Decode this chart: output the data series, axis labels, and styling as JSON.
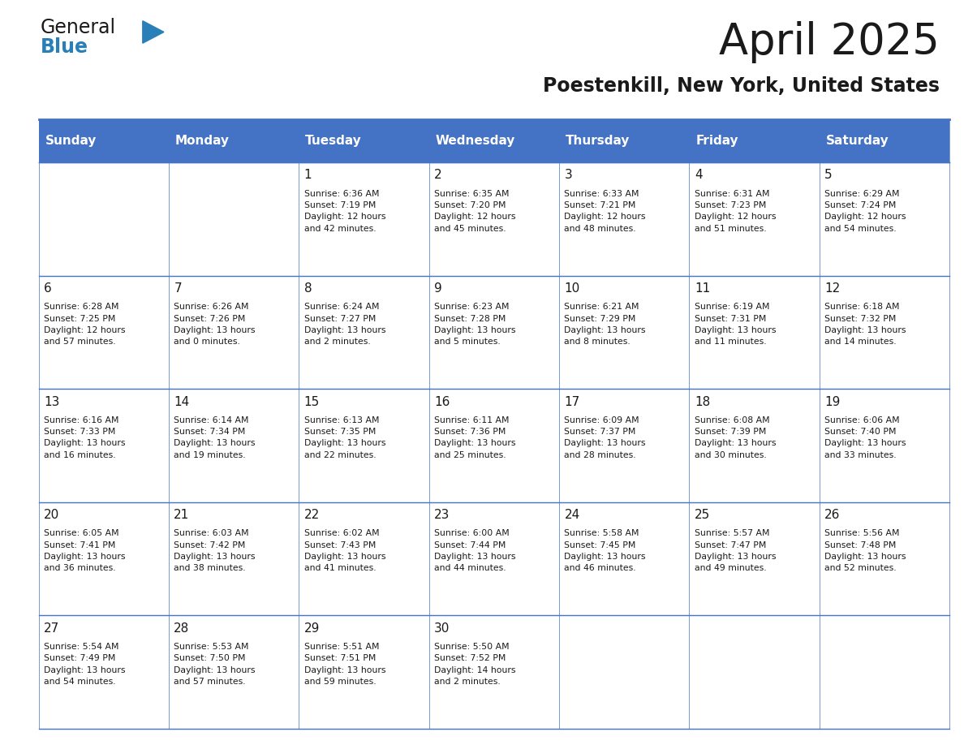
{
  "title": "April 2025",
  "subtitle": "Poestenkill, New York, United States",
  "header_bg": "#4472C4",
  "header_text": "#FFFFFF",
  "cell_bg": "#FFFFFF",
  "border_color": "#4472C4",
  "title_color": "#1a1a1a",
  "subtitle_color": "#1a1a1a",
  "days_of_week": [
    "Sunday",
    "Monday",
    "Tuesday",
    "Wednesday",
    "Thursday",
    "Friday",
    "Saturday"
  ],
  "weeks": [
    [
      {
        "day": "",
        "info": ""
      },
      {
        "day": "",
        "info": ""
      },
      {
        "day": "1",
        "info": "Sunrise: 6:36 AM\nSunset: 7:19 PM\nDaylight: 12 hours\nand 42 minutes."
      },
      {
        "day": "2",
        "info": "Sunrise: 6:35 AM\nSunset: 7:20 PM\nDaylight: 12 hours\nand 45 minutes."
      },
      {
        "day": "3",
        "info": "Sunrise: 6:33 AM\nSunset: 7:21 PM\nDaylight: 12 hours\nand 48 minutes."
      },
      {
        "day": "4",
        "info": "Sunrise: 6:31 AM\nSunset: 7:23 PM\nDaylight: 12 hours\nand 51 minutes."
      },
      {
        "day": "5",
        "info": "Sunrise: 6:29 AM\nSunset: 7:24 PM\nDaylight: 12 hours\nand 54 minutes."
      }
    ],
    [
      {
        "day": "6",
        "info": "Sunrise: 6:28 AM\nSunset: 7:25 PM\nDaylight: 12 hours\nand 57 minutes."
      },
      {
        "day": "7",
        "info": "Sunrise: 6:26 AM\nSunset: 7:26 PM\nDaylight: 13 hours\nand 0 minutes."
      },
      {
        "day": "8",
        "info": "Sunrise: 6:24 AM\nSunset: 7:27 PM\nDaylight: 13 hours\nand 2 minutes."
      },
      {
        "day": "9",
        "info": "Sunrise: 6:23 AM\nSunset: 7:28 PM\nDaylight: 13 hours\nand 5 minutes."
      },
      {
        "day": "10",
        "info": "Sunrise: 6:21 AM\nSunset: 7:29 PM\nDaylight: 13 hours\nand 8 minutes."
      },
      {
        "day": "11",
        "info": "Sunrise: 6:19 AM\nSunset: 7:31 PM\nDaylight: 13 hours\nand 11 minutes."
      },
      {
        "day": "12",
        "info": "Sunrise: 6:18 AM\nSunset: 7:32 PM\nDaylight: 13 hours\nand 14 minutes."
      }
    ],
    [
      {
        "day": "13",
        "info": "Sunrise: 6:16 AM\nSunset: 7:33 PM\nDaylight: 13 hours\nand 16 minutes."
      },
      {
        "day": "14",
        "info": "Sunrise: 6:14 AM\nSunset: 7:34 PM\nDaylight: 13 hours\nand 19 minutes."
      },
      {
        "day": "15",
        "info": "Sunrise: 6:13 AM\nSunset: 7:35 PM\nDaylight: 13 hours\nand 22 minutes."
      },
      {
        "day": "16",
        "info": "Sunrise: 6:11 AM\nSunset: 7:36 PM\nDaylight: 13 hours\nand 25 minutes."
      },
      {
        "day": "17",
        "info": "Sunrise: 6:09 AM\nSunset: 7:37 PM\nDaylight: 13 hours\nand 28 minutes."
      },
      {
        "day": "18",
        "info": "Sunrise: 6:08 AM\nSunset: 7:39 PM\nDaylight: 13 hours\nand 30 minutes."
      },
      {
        "day": "19",
        "info": "Sunrise: 6:06 AM\nSunset: 7:40 PM\nDaylight: 13 hours\nand 33 minutes."
      }
    ],
    [
      {
        "day": "20",
        "info": "Sunrise: 6:05 AM\nSunset: 7:41 PM\nDaylight: 13 hours\nand 36 minutes."
      },
      {
        "day": "21",
        "info": "Sunrise: 6:03 AM\nSunset: 7:42 PM\nDaylight: 13 hours\nand 38 minutes."
      },
      {
        "day": "22",
        "info": "Sunrise: 6:02 AM\nSunset: 7:43 PM\nDaylight: 13 hours\nand 41 minutes."
      },
      {
        "day": "23",
        "info": "Sunrise: 6:00 AM\nSunset: 7:44 PM\nDaylight: 13 hours\nand 44 minutes."
      },
      {
        "day": "24",
        "info": "Sunrise: 5:58 AM\nSunset: 7:45 PM\nDaylight: 13 hours\nand 46 minutes."
      },
      {
        "day": "25",
        "info": "Sunrise: 5:57 AM\nSunset: 7:47 PM\nDaylight: 13 hours\nand 49 minutes."
      },
      {
        "day": "26",
        "info": "Sunrise: 5:56 AM\nSunset: 7:48 PM\nDaylight: 13 hours\nand 52 minutes."
      }
    ],
    [
      {
        "day": "27",
        "info": "Sunrise: 5:54 AM\nSunset: 7:49 PM\nDaylight: 13 hours\nand 54 minutes."
      },
      {
        "day": "28",
        "info": "Sunrise: 5:53 AM\nSunset: 7:50 PM\nDaylight: 13 hours\nand 57 minutes."
      },
      {
        "day": "29",
        "info": "Sunrise: 5:51 AM\nSunset: 7:51 PM\nDaylight: 13 hours\nand 59 minutes."
      },
      {
        "day": "30",
        "info": "Sunrise: 5:50 AM\nSunset: 7:52 PM\nDaylight: 14 hours\nand 2 minutes."
      },
      {
        "day": "",
        "info": ""
      },
      {
        "day": "",
        "info": ""
      },
      {
        "day": "",
        "info": ""
      }
    ]
  ]
}
